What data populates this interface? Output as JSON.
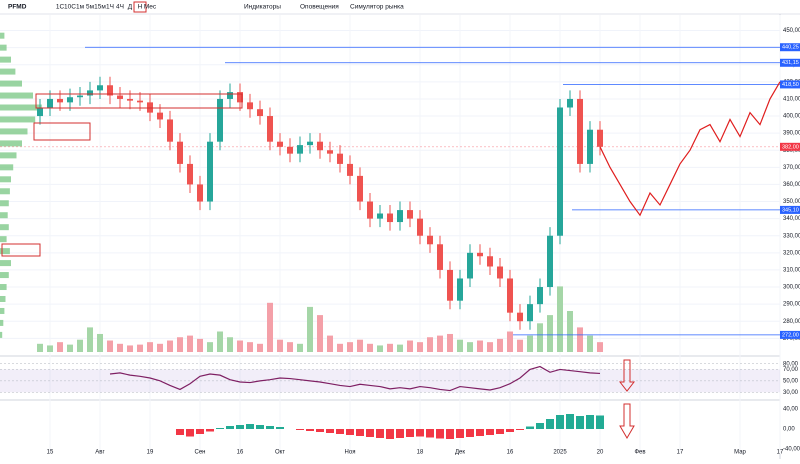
{
  "toolbar": {
    "symbol": "PFMD",
    "intervals": [
      "1С",
      "10С",
      "1м",
      "5м",
      "15м",
      "1Ч",
      "4Ч",
      "Д",
      "Н",
      "Мес"
    ],
    "indicators": "Индикаторы",
    "alerts": "Оповещения",
    "replay": "Симулятор рынка"
  },
  "chart_data": {
    "type": "candlestick",
    "categories": [
      null,
      "15",
      null,
      null,
      null,
      null,
      "Авг",
      null,
      null,
      null,
      null,
      "19",
      null,
      null,
      null,
      null,
      "Сен",
      null,
      null,
      null,
      "16",
      null,
      null,
      null,
      "Окт",
      null,
      null,
      null,
      null,
      null,
      null,
      "Ноя",
      null,
      null,
      null,
      null,
      null,
      null,
      "18",
      null,
      null,
      null,
      "Дек",
      null,
      null,
      null,
      null,
      "16",
      null,
      null,
      null,
      null,
      "2025",
      null,
      null,
      null,
      "20",
      null,
      null,
      null,
      "Фев",
      null,
      null,
      null,
      "17",
      null,
      null,
      null,
      null,
      null,
      "Мар",
      null,
      null,
      null,
      "17"
    ],
    "open": [
      400,
      405,
      410,
      408,
      411,
      412,
      415,
      418,
      412,
      410,
      409,
      408,
      402,
      398,
      385,
      372,
      360,
      350,
      385,
      410,
      414,
      408,
      404,
      400,
      385,
      382,
      378,
      383,
      385,
      380,
      378,
      372,
      365,
      350,
      340,
      343,
      338,
      345,
      340,
      330,
      325,
      310,
      292,
      305,
      320,
      318,
      312,
      305,
      285,
      280,
      290,
      300,
      330,
      405,
      410,
      372,
      392,
      null,
      null,
      null,
      null,
      null,
      null,
      null,
      null,
      null,
      null,
      null,
      null,
      null,
      null,
      null,
      null,
      null,
      null
    ],
    "high": [
      410,
      415,
      415,
      416,
      417,
      420,
      423,
      423,
      417,
      415,
      414,
      413,
      407,
      403,
      390,
      377,
      365,
      390,
      415,
      419,
      419,
      413,
      409,
      405,
      390,
      387,
      388,
      390,
      390,
      385,
      383,
      377,
      370,
      355,
      348,
      348,
      350,
      350,
      345,
      335,
      330,
      315,
      310,
      325,
      325,
      323,
      317,
      310,
      290,
      295,
      305,
      335,
      410,
      415,
      415,
      397,
      397,
      null,
      null,
      null,
      null,
      null,
      null,
      null,
      null,
      null,
      null,
      null,
      null,
      null,
      null,
      null,
      null,
      null,
      null
    ],
    "low": [
      395,
      400,
      403,
      403,
      406,
      407,
      410,
      407,
      405,
      404,
      403,
      397,
      393,
      380,
      367,
      355,
      345,
      345,
      380,
      405,
      403,
      399,
      395,
      380,
      377,
      373,
      373,
      378,
      375,
      373,
      367,
      360,
      345,
      335,
      335,
      333,
      333,
      335,
      325,
      320,
      305,
      287,
      287,
      300,
      313,
      307,
      300,
      280,
      275,
      275,
      285,
      295,
      325,
      400,
      367,
      367,
      377,
      null,
      null,
      null,
      null,
      null,
      null,
      null,
      null,
      null,
      null,
      null,
      null,
      null,
      null,
      null,
      null,
      null,
      null
    ],
    "close": [
      405,
      410,
      408,
      411,
      412,
      415,
      418,
      412,
      410,
      409,
      408,
      402,
      398,
      385,
      372,
      360,
      350,
      385,
      410,
      414,
      408,
      404,
      400,
      385,
      382,
      378,
      383,
      385,
      380,
      378,
      372,
      365,
      350,
      340,
      343,
      338,
      345,
      340,
      330,
      325,
      310,
      292,
      305,
      320,
      318,
      312,
      305,
      285,
      280,
      290,
      300,
      330,
      405,
      410,
      372,
      392,
      382,
      null,
      null,
      null,
      null,
      null,
      null,
      null,
      null,
      null,
      null,
      null,
      null,
      null,
      null,
      null,
      null,
      null,
      null
    ],
    "up_color": "#26a69a",
    "down_color": "#ef5350",
    "forecast": {
      "color": "#e01e1e",
      "values": [
        null,
        null,
        null,
        null,
        null,
        null,
        null,
        null,
        null,
        null,
        null,
        null,
        null,
        null,
        null,
        null,
        null,
        null,
        null,
        null,
        null,
        null,
        null,
        null,
        null,
        null,
        null,
        null,
        null,
        null,
        null,
        null,
        null,
        null,
        null,
        null,
        null,
        null,
        null,
        null,
        null,
        null,
        null,
        null,
        null,
        null,
        null,
        null,
        null,
        null,
        null,
        null,
        null,
        null,
        null,
        null,
        382,
        370,
        360,
        350,
        342,
        355,
        348,
        360,
        372,
        380,
        392,
        395,
        385,
        398,
        388,
        402,
        395,
        410,
        420
      ]
    },
    "ylim": [
      262,
      455
    ],
    "yticks": [
      {
        "value": 450,
        "label": "450,00"
      },
      {
        "value": 440,
        "label": "440,00"
      },
      {
        "value": 430,
        "label": "430,00"
      },
      {
        "value": 420,
        "label": "420,00"
      },
      {
        "value": 410,
        "label": "410,00"
      },
      {
        "value": 400,
        "label": "400,00"
      },
      {
        "value": 390,
        "label": "390,00"
      },
      {
        "value": 380,
        "label": "380,00"
      },
      {
        "value": 370,
        "label": "370,00"
      },
      {
        "value": 360,
        "label": "360,00"
      },
      {
        "value": 350,
        "label": "350,00"
      },
      {
        "value": 340,
        "label": "340,00"
      },
      {
        "value": 330,
        "label": "330,00"
      },
      {
        "value": 320,
        "label": "320,00"
      },
      {
        "value": 310,
        "label": "310,00"
      },
      {
        "value": 300,
        "label": "300,00"
      },
      {
        "value": 290,
        "label": "290,00"
      },
      {
        "value": 280,
        "label": "280,00"
      },
      {
        "value": 270,
        "label": "270,00"
      }
    ],
    "price_lines": [
      {
        "value": 440.25,
        "label": "440,25",
        "color": "#2962ff"
      },
      {
        "value": 431.15,
        "label": "431,15",
        "color": "#2962ff"
      },
      {
        "value": 418.5,
        "label": "418,50",
        "color": "#2962ff"
      },
      {
        "value": 345.1,
        "label": "345,10",
        "color": "#2962ff"
      },
      {
        "value": 272,
        "label": "272,00",
        "color": "#2962ff"
      },
      {
        "value": 382,
        "label": "382,00",
        "color": "#f23645"
      }
    ],
    "volume": {
      "up_color": "#a5d6a7",
      "down_color": "#f4a0a8",
      "ylim": [
        0,
        100
      ],
      "values": [
        10,
        8,
        12,
        9,
        15,
        30,
        22,
        14,
        10,
        8,
        9,
        12,
        10,
        14,
        18,
        20,
        16,
        12,
        25,
        18,
        14,
        12,
        10,
        60,
        15,
        12,
        10,
        55,
        45,
        20,
        10,
        12,
        15,
        10,
        8,
        10,
        9,
        14,
        12,
        18,
        20,
        22,
        15,
        12,
        14,
        12,
        16,
        25,
        15,
        20,
        35,
        45,
        80,
        50,
        30,
        20,
        12,
        null,
        null,
        null,
        null,
        null,
        null,
        null,
        null,
        null,
        null,
        null,
        null,
        null,
        null,
        null,
        null,
        null,
        null
      ]
    },
    "profile": {
      "color": "#7fc98a",
      "prices": [
        447,
        440,
        433,
        426,
        419,
        412,
        405,
        398,
        391,
        384,
        377,
        370,
        363,
        356,
        349,
        342,
        335,
        328,
        321,
        314,
        307,
        300,
        293,
        286,
        279,
        272
      ],
      "values": [
        4,
        6,
        10,
        14,
        20,
        30,
        38,
        32,
        25,
        20,
        15,
        12,
        10,
        9,
        8,
        7,
        8,
        6,
        9,
        10,
        8,
        6,
        5,
        4,
        3,
        2
      ]
    },
    "rsi": {
      "color": "#7e1f63",
      "ylim": [
        20,
        90
      ],
      "band": [
        30,
        70
      ],
      "yticks": [
        {
          "value": 80,
          "label": "80,00"
        },
        {
          "value": 70,
          "label": "70,00"
        },
        {
          "value": 50,
          "label": "50,00"
        },
        {
          "value": 30,
          "label": "30,00"
        }
      ],
      "values": [
        null,
        null,
        null,
        null,
        null,
        null,
        null,
        62,
        64,
        60,
        58,
        55,
        50,
        42,
        35,
        45,
        58,
        62,
        60,
        52,
        48,
        47,
        50,
        52,
        55,
        54,
        52,
        50,
        48,
        45,
        42,
        40,
        44,
        42,
        40,
        36,
        38,
        36,
        40,
        38,
        35,
        33,
        40,
        38,
        36,
        34,
        38,
        45,
        55,
        70,
        75,
        65,
        70,
        68,
        66,
        64,
        63,
        null,
        null,
        null,
        null,
        null,
        null,
        null,
        null,
        null,
        null,
        null,
        null,
        null,
        null,
        null,
        null,
        null,
        null
      ]
    },
    "macd": {
      "up_color": "#22ab94",
      "down_color": "#f23645",
      "ylim": [
        -50,
        50
      ],
      "yticks": [
        {
          "value": 40,
          "label": "40,00"
        },
        {
          "value": 0,
          "label": "0,00"
        },
        {
          "value": -40,
          "label": "-40,00"
        }
      ],
      "values": [
        null,
        null,
        null,
        null,
        null,
        null,
        null,
        null,
        null,
        null,
        null,
        null,
        null,
        null,
        -12,
        -15,
        -10,
        -5,
        2,
        6,
        8,
        10,
        8,
        6,
        4,
        0,
        -2,
        -4,
        -6,
        -8,
        -10,
        -12,
        -14,
        -16,
        -18,
        -20,
        -18,
        -16,
        -15,
        -17,
        -19,
        -20,
        -18,
        -16,
        -14,
        -12,
        -10,
        -6,
        -2,
        5,
        12,
        20,
        28,
        30,
        26,
        28,
        27,
        null,
        null,
        null,
        null,
        null,
        null,
        null,
        null,
        null,
        null,
        null,
        null,
        null,
        null,
        null,
        null,
        null,
        null
      ]
    }
  }
}
